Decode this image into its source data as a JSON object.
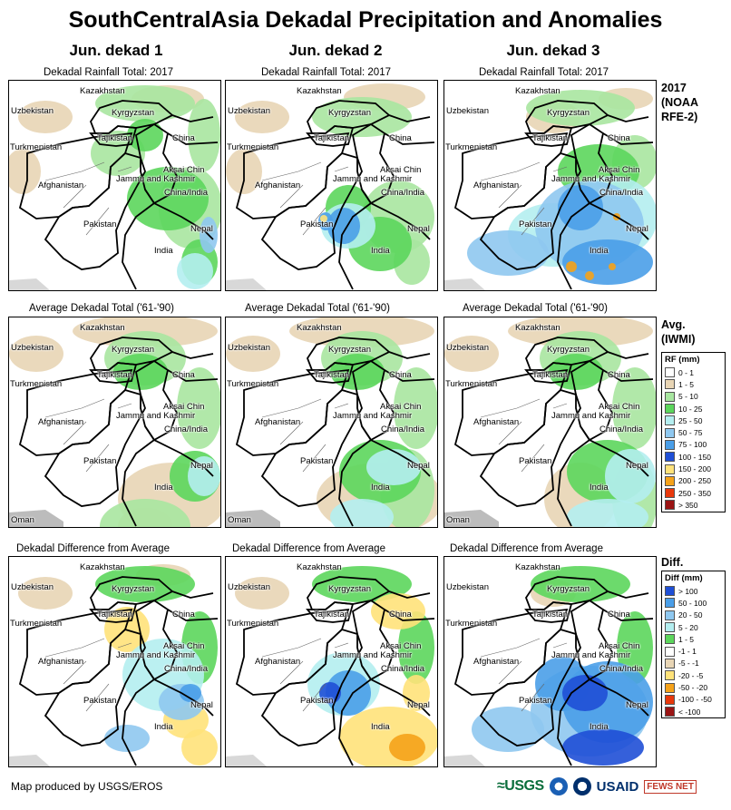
{
  "title": "SouthCentralAsia Dekadal Precipitation and Anomalies",
  "columns": [
    {
      "heading": "Jun. dekad 1"
    },
    {
      "heading": "Jun. dekad 2"
    },
    {
      "heading": "Jun. dekad 3"
    }
  ],
  "rows": [
    {
      "panel_title": "Dekadal Rainfall Total: 2017",
      "side_label": [
        "2017",
        "(NOAA",
        "RFE-2)"
      ]
    },
    {
      "panel_title": "Average Dekadal Total ('61-'90)",
      "side_label": [
        "Avg.",
        "(IWMI)"
      ]
    },
    {
      "panel_title": "Dekadal Difference from Average",
      "side_label": [
        "Diff."
      ]
    }
  ],
  "map_labels": {
    "kazakhstan": "Kazakhstan",
    "uzbekistan": "Uzbekistan",
    "kyrgyzstan": "Kyrgyzstan",
    "tajikistan": "Tajikistan",
    "turkmenistan": "Turkmenistan",
    "china": "China",
    "aksai_chin": "Aksai Chin",
    "jammu_kashmir": "Jammu and Kashmir",
    "china_india": "China/India",
    "afghanistan": "Afghanistan",
    "pakistan": "Pakistan",
    "nepal": "Nepal",
    "india": "India",
    "oman": "Oman"
  },
  "rf_legend": {
    "title": "RF (mm)",
    "items": [
      {
        "label": "0 - 1",
        "color": "#ffffff"
      },
      {
        "label": "1 - 5",
        "color": "#e8d5b5"
      },
      {
        "label": "5 - 10",
        "color": "#a8e6a0"
      },
      {
        "label": "10 - 25",
        "color": "#5cd65c"
      },
      {
        "label": "25 - 50",
        "color": "#b4eef0"
      },
      {
        "label": "50 - 75",
        "color": "#8fc8f0"
      },
      {
        "label": "75 - 100",
        "color": "#4a9ee8"
      },
      {
        "label": "100 - 150",
        "color": "#1f4fd6"
      },
      {
        "label": "150 - 200",
        "color": "#ffe27a"
      },
      {
        "label": "200 - 250",
        "color": "#f5a21a"
      },
      {
        "label": "250 - 350",
        "color": "#e8380c"
      },
      {
        "label": "> 350",
        "color": "#9a1414"
      }
    ]
  },
  "diff_legend": {
    "title": "Diff (mm)",
    "items": [
      {
        "label": "> 100",
        "color": "#1f4fd6"
      },
      {
        "label": "50 - 100",
        "color": "#4a9ee8"
      },
      {
        "label": "20 - 50",
        "color": "#8fc8f0"
      },
      {
        "label": "5 - 20",
        "color": "#b4eef0"
      },
      {
        "label": "1 - 5",
        "color": "#5cd65c"
      },
      {
        "label": "-1 - 1",
        "color": "#ffffff"
      },
      {
        "label": "-5 - -1",
        "color": "#e8d5b5"
      },
      {
        "label": "-20 - -5",
        "color": "#ffe27a"
      },
      {
        "label": "-50 - -20",
        "color": "#f5a21a"
      },
      {
        "label": "-100 - -50",
        "color": "#e8380c"
      },
      {
        "label": "< -100",
        "color": "#9a1414"
      }
    ]
  },
  "footer": {
    "credit": "Map produced by USGS/EROS"
  },
  "logos": {
    "usgs": "≈USGS",
    "usaid": "USAID",
    "fews": "FEWS NET"
  }
}
